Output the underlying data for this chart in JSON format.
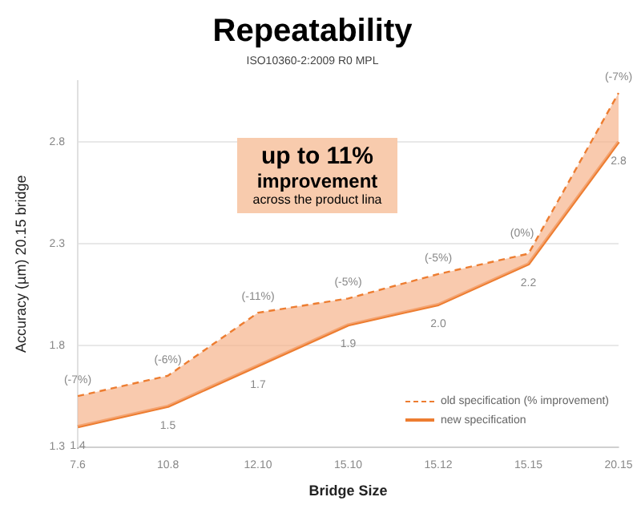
{
  "chart_data": {
    "type": "line",
    "title": "Repeatability",
    "subtitle": "ISO10360-2:2009 R0 MPL",
    "xlabel": "Bridge Size",
    "ylabel": "Accuracy (µm) 20.15 bridge",
    "categories": [
      "7.6",
      "10.8",
      "12.10",
      "15.10",
      "15.12",
      "15.15",
      "20.15"
    ],
    "series": [
      {
        "name": "old specification (% improvement)",
        "color": "#ed7d31",
        "line_style": "dashed",
        "values": [
          1.55,
          1.65,
          1.96,
          2.03,
          2.15,
          2.25,
          3.04
        ]
      },
      {
        "name": "new specification",
        "color": "#ed7d31",
        "line_style": "solid",
        "values": [
          1.4,
          1.5,
          1.7,
          1.9,
          2.0,
          2.2,
          2.8
        ],
        "value_labels": [
          "1.4",
          "1.5",
          "1.7",
          "1.9",
          "2.0",
          "2.2",
          "2.8"
        ]
      }
    ],
    "ylim": [
      1.3,
      3.1
    ],
    "yticks": [
      1.3,
      1.8,
      2.3,
      2.8
    ],
    "grid": "y",
    "legend": "bottom right",
    "marker": "none",
    "annotations": [
      "up to 11%",
      "improvement",
      "across the product lina",
      {
        "text": "(-7%)",
        "x": "7.6",
        "y": 1.55
      },
      {
        "text": "(-6%)",
        "x": "10.8",
        "y": 1.65
      },
      {
        "text": "(-11%)",
        "x": "12.10",
        "y": 1.96
      },
      {
        "text": "(-5%)",
        "x": "15.10",
        "y": 2.03
      },
      {
        "text": "(-5%)",
        "x": "15.12",
        "y": 2.15
      },
      {
        "text": "(0%)",
        "x": "15.15",
        "y": 2.25
      },
      {
        "text": "(-7%)",
        "x": "20.15",
        "y": 3.04
      }
    ]
  }
}
